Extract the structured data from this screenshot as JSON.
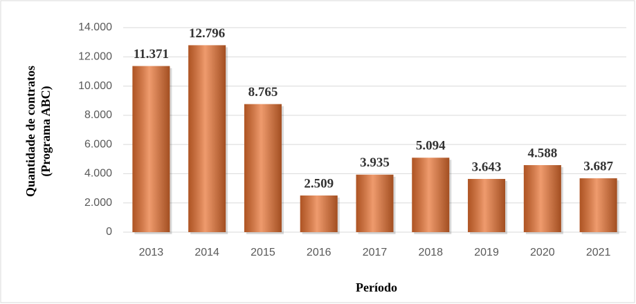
{
  "chart_data": {
    "type": "bar",
    "x_label": "Período",
    "y_label": [
      "Quantidade de contratos",
      "(Programa ABC)"
    ],
    "categories": [
      "2013",
      "2014",
      "2015",
      "2016",
      "2017",
      "2018",
      "2019",
      "2020",
      "2021"
    ],
    "values": [
      11371,
      12796,
      8765,
      2509,
      3935,
      5094,
      3643,
      4588,
      3687
    ],
    "value_labels": [
      "11.371",
      "12.796",
      "8.765",
      "2.509",
      "3.935",
      "5.094",
      "3.643",
      "4.588",
      "3.687"
    ],
    "color": "#e8702f",
    "ylim": [
      0,
      14000
    ],
    "yticks": [
      0,
      {
        "value": 2000,
        "label": "2.000"
      },
      {
        "value": 4000,
        "label": "4.000"
      },
      {
        "value": 6000,
        "label": "6.000"
      },
      {
        "value": 8000,
        "label": "8.000"
      },
      {
        "value": 10000,
        "label": "10.000"
      },
      {
        "value": 12000,
        "label": "12.000"
      },
      {
        "value": 14000,
        "label": "14.000"
      }
    ],
    "grid": true
  }
}
